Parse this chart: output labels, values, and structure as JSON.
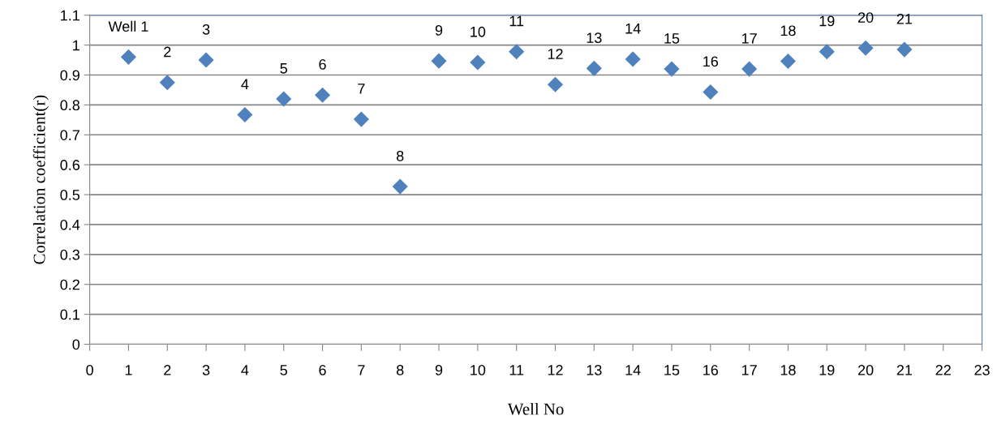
{
  "chart_data": {
    "type": "scatter",
    "xlabel": "Well No",
    "ylabel": "Correlation coefficient(r)",
    "x": [
      1,
      2,
      3,
      4,
      5,
      6,
      7,
      8,
      9,
      10,
      11,
      12,
      13,
      14,
      15,
      16,
      17,
      18,
      19,
      20,
      21
    ],
    "series": [
      {
        "color": "#4f81bd",
        "values": [
          0.96,
          0.875,
          0.95,
          0.767,
          0.82,
          0.833,
          0.752,
          0.527,
          0.947,
          0.942,
          0.978,
          0.868,
          0.922,
          0.953,
          0.92,
          0.843,
          0.92,
          0.946,
          0.978,
          0.99,
          0.985
        ]
      }
    ],
    "marker": "diamond",
    "grid": "y",
    "xlim": [
      0,
      23
    ],
    "xticks": [
      0,
      1,
      2,
      3,
      4,
      5,
      6,
      7,
      8,
      9,
      10,
      11,
      12,
      13,
      14,
      15,
      16,
      17,
      18,
      19,
      20,
      21,
      22,
      23
    ],
    "ylim": [
      0,
      1.1
    ],
    "yticks": [
      0,
      0.1,
      0.2,
      0.3,
      0.4,
      0.5,
      0.6,
      0.7,
      0.8,
      0.9,
      1,
      1.1
    ],
    "annotations": [
      {
        "text": "Well 1",
        "x": 1,
        "y": 0.96
      },
      {
        "text": "2",
        "x": 2,
        "y": 0.875
      },
      {
        "text": "3",
        "x": 3,
        "y": 0.95
      },
      {
        "text": "4",
        "x": 4,
        "y": 0.767
      },
      {
        "text": "5",
        "x": 5,
        "y": 0.82
      },
      {
        "text": "6",
        "x": 6,
        "y": 0.833
      },
      {
        "text": "7",
        "x": 7,
        "y": 0.752
      },
      {
        "text": "8",
        "x": 8,
        "y": 0.527
      },
      {
        "text": "9",
        "x": 9,
        "y": 0.947
      },
      {
        "text": "10",
        "x": 10,
        "y": 0.942
      },
      {
        "text": "11",
        "x": 11,
        "y": 0.978
      },
      {
        "text": "12",
        "x": 12,
        "y": 0.868
      },
      {
        "text": "13",
        "x": 13,
        "y": 0.922
      },
      {
        "text": "14",
        "x": 14,
        "y": 0.953
      },
      {
        "text": "15",
        "x": 15,
        "y": 0.92
      },
      {
        "text": "16",
        "x": 16,
        "y": 0.843
      },
      {
        "text": "17",
        "x": 17,
        "y": 0.92
      },
      {
        "text": "18",
        "x": 18,
        "y": 0.946
      },
      {
        "text": "19",
        "x": 19,
        "y": 0.978
      },
      {
        "text": "20",
        "x": 20,
        "y": 0.99
      },
      {
        "text": "21",
        "x": 21,
        "y": 0.985
      }
    ]
  }
}
